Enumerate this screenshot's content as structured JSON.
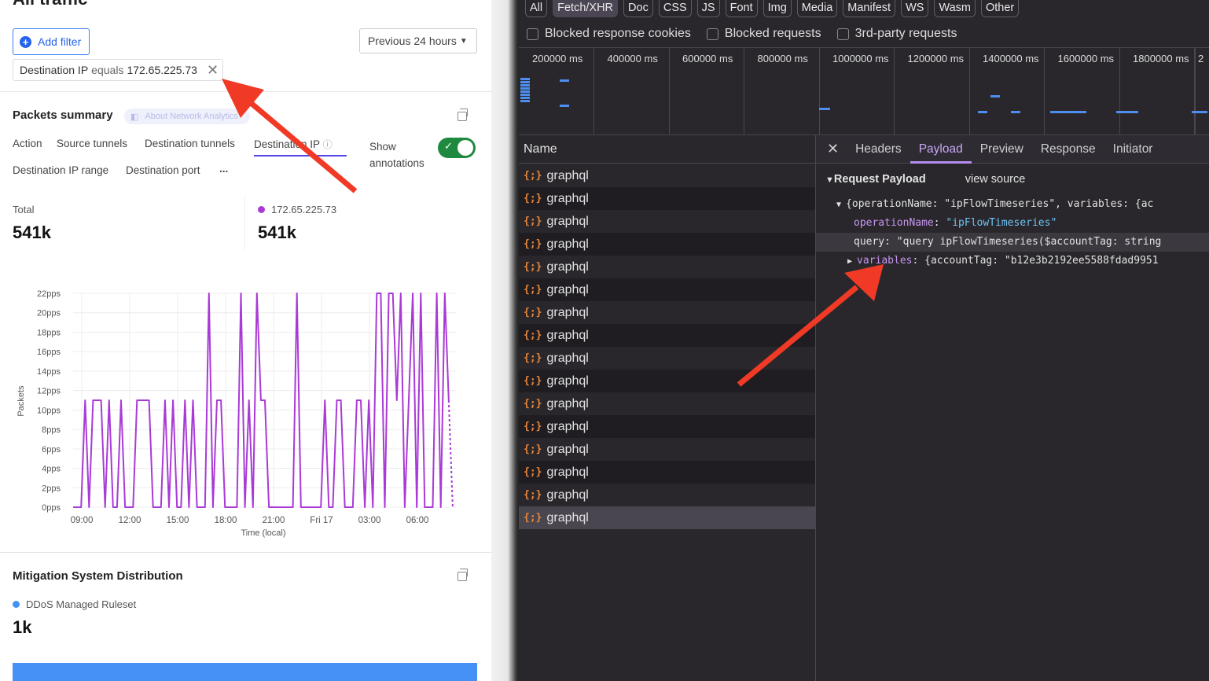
{
  "left": {
    "page_title": "All traffic",
    "add_filter": "Add filter",
    "time_range": "Previous 24 hours",
    "filter_chip": {
      "field": "Destination IP",
      "operator": "equals",
      "value": "172.65.225.73"
    },
    "packets_summary": {
      "title": "Packets summary",
      "about_link": "About Network Analytics",
      "tabs": [
        "Action",
        "Source tunnels",
        "Destination tunnels",
        "Destination IP",
        "Destination IP range",
        "Destination port",
        "..."
      ],
      "active_tab": "Destination IP",
      "show_annotations": "Show annotations",
      "annotations_on": true,
      "total_label": "Total",
      "total_value": "541k",
      "series_label": "172.65.225.73",
      "series_value": "541k",
      "series_color": "#a93ad6"
    },
    "mitigation": {
      "title": "Mitigation System Distribution",
      "legend": "DDoS Managed Ruleset",
      "value": "1k",
      "color": "#4691f6"
    }
  },
  "chart_data": {
    "type": "line",
    "xlabel": "Time (local)",
    "ylabel": "Packets",
    "x_ticks": [
      "09:00",
      "12:00",
      "15:00",
      "18:00",
      "21:00",
      "Fri 17",
      "03:00",
      "06:00"
    ],
    "y_ticks": [
      "0pps",
      "2pps",
      "4pps",
      "6pps",
      "8pps",
      "10pps",
      "12pps",
      "14pps",
      "16pps",
      "18pps",
      "20pps",
      "22pps"
    ],
    "ylim": [
      0,
      22
    ],
    "grid": true,
    "color": "#a93ad6",
    "x": [
      "Thu 08:30",
      "Thu 08:45",
      "Thu 09:00",
      "Thu 09:15",
      "Thu 09:30",
      "Thu 09:45",
      "Thu 10:00",
      "Thu 10:15",
      "Thu 10:30",
      "Thu 10:45",
      "Thu 11:00",
      "Thu 11:15",
      "Thu 11:30",
      "Thu 11:45",
      "Thu 12:00",
      "Thu 12:15",
      "Thu 12:30",
      "Thu 12:45",
      "Thu 13:00",
      "Thu 13:15",
      "Thu 13:30",
      "Thu 13:45",
      "Thu 14:00",
      "Thu 14:15",
      "Thu 14:30",
      "Thu 14:45",
      "Thu 15:00",
      "Thu 15:15",
      "Thu 15:30",
      "Thu 15:45",
      "Thu 16:00",
      "Thu 16:15",
      "Thu 16:30",
      "Thu 16:45",
      "Thu 17:00",
      "Thu 17:15",
      "Thu 17:30",
      "Thu 17:45",
      "Thu 18:00",
      "Thu 18:15",
      "Thu 18:30",
      "Thu 18:45",
      "Thu 19:00",
      "Thu 19:15",
      "Thu 19:30",
      "Thu 19:45",
      "Thu 20:00",
      "Thu 20:15",
      "Thu 20:30",
      "Thu 20:45",
      "Thu 21:00",
      "Thu 21:15",
      "Thu 21:30",
      "Thu 21:45",
      "Thu 22:00",
      "Thu 22:15",
      "Thu 22:30",
      "Thu 22:45",
      "Thu 23:00",
      "Thu 23:15",
      "Thu 23:30",
      "Thu 23:45",
      "Fri 00:00",
      "Fri 00:15",
      "Fri 00:30",
      "Fri 00:45",
      "Fri 01:00",
      "Fri 01:15",
      "Fri 01:30",
      "Fri 01:45",
      "Fri 02:00",
      "Fri 02:15",
      "Fri 02:30",
      "Fri 02:45",
      "Fri 03:00",
      "Fri 03:15",
      "Fri 03:30",
      "Fri 03:45",
      "Fri 04:00",
      "Fri 04:15",
      "Fri 04:30",
      "Fri 04:45",
      "Fri 05:00",
      "Fri 05:15",
      "Fri 05:30",
      "Fri 05:45",
      "Fri 06:00",
      "Fri 06:15",
      "Fri 06:30",
      "Fri 06:45",
      "Fri 07:00",
      "Fri 07:15",
      "Fri 07:30",
      "Fri 07:45",
      "Fri 08:00",
      "Fri 08:15"
    ],
    "values": [
      0,
      0,
      0,
      11,
      0,
      11,
      11,
      11,
      0,
      11,
      0,
      0,
      11,
      0,
      0,
      0,
      11,
      11,
      11,
      11,
      0,
      0,
      0,
      11,
      0,
      11,
      0,
      0,
      11,
      0,
      11,
      0,
      0,
      0,
      22,
      0,
      11,
      11,
      0,
      0,
      0,
      0,
      22,
      0,
      11,
      0,
      22,
      11,
      11,
      0,
      0,
      0,
      0,
      0,
      0,
      0,
      22,
      0,
      0,
      0,
      0,
      0,
      0,
      11,
      0,
      0,
      11,
      11,
      0,
      0,
      0,
      11,
      11,
      0,
      11,
      0,
      22,
      22,
      0,
      22,
      22,
      11,
      22,
      0,
      11,
      22,
      0,
      22,
      0,
      0,
      0,
      22,
      0,
      22,
      11,
      0
    ],
    "incomplete_from": "Fri 08:00"
  },
  "devtools": {
    "filter_types": [
      "All",
      "Fetch/XHR",
      "Doc",
      "CSS",
      "JS",
      "Font",
      "Img",
      "Media",
      "Manifest",
      "WS",
      "Wasm",
      "Other"
    ],
    "active_filter": "Fetch/XHR",
    "checkboxes": [
      "Blocked response cookies",
      "Blocked requests",
      "3rd-party requests"
    ],
    "timeline_labels": [
      "200000 ms",
      "400000 ms",
      "600000 ms",
      "800000 ms",
      "1000000 ms",
      "1200000 ms",
      "1400000 ms",
      "1600000 ms",
      "1800000 ms",
      "2"
    ],
    "name_header": "Name",
    "requests": [
      "graphql",
      "graphql",
      "graphql",
      "graphql",
      "graphql",
      "graphql",
      "graphql",
      "graphql",
      "graphql",
      "graphql",
      "graphql",
      "graphql",
      "graphql",
      "graphql",
      "graphql",
      "graphql"
    ],
    "selected_index": 15,
    "detail_tabs": [
      "Headers",
      "Payload",
      "Preview",
      "Response",
      "Initiator"
    ],
    "active_detail_tab": "Payload",
    "payload": {
      "section": "Request Payload",
      "view_source": "view source",
      "summary": "{operationName: \"ipFlowTimeseries\", variables: {ac",
      "operationName_key": "operationName",
      "operationName_val": "\"ipFlowTimeseries\"",
      "query_key": "query",
      "query_val": "\"query ipFlowTimeseries($accountTag: string",
      "variables_key": "variables",
      "variables_val": "{accountTag: \"b12e3b2192ee5588fdad9951"
    }
  },
  "annotation_color": "#f03a26"
}
